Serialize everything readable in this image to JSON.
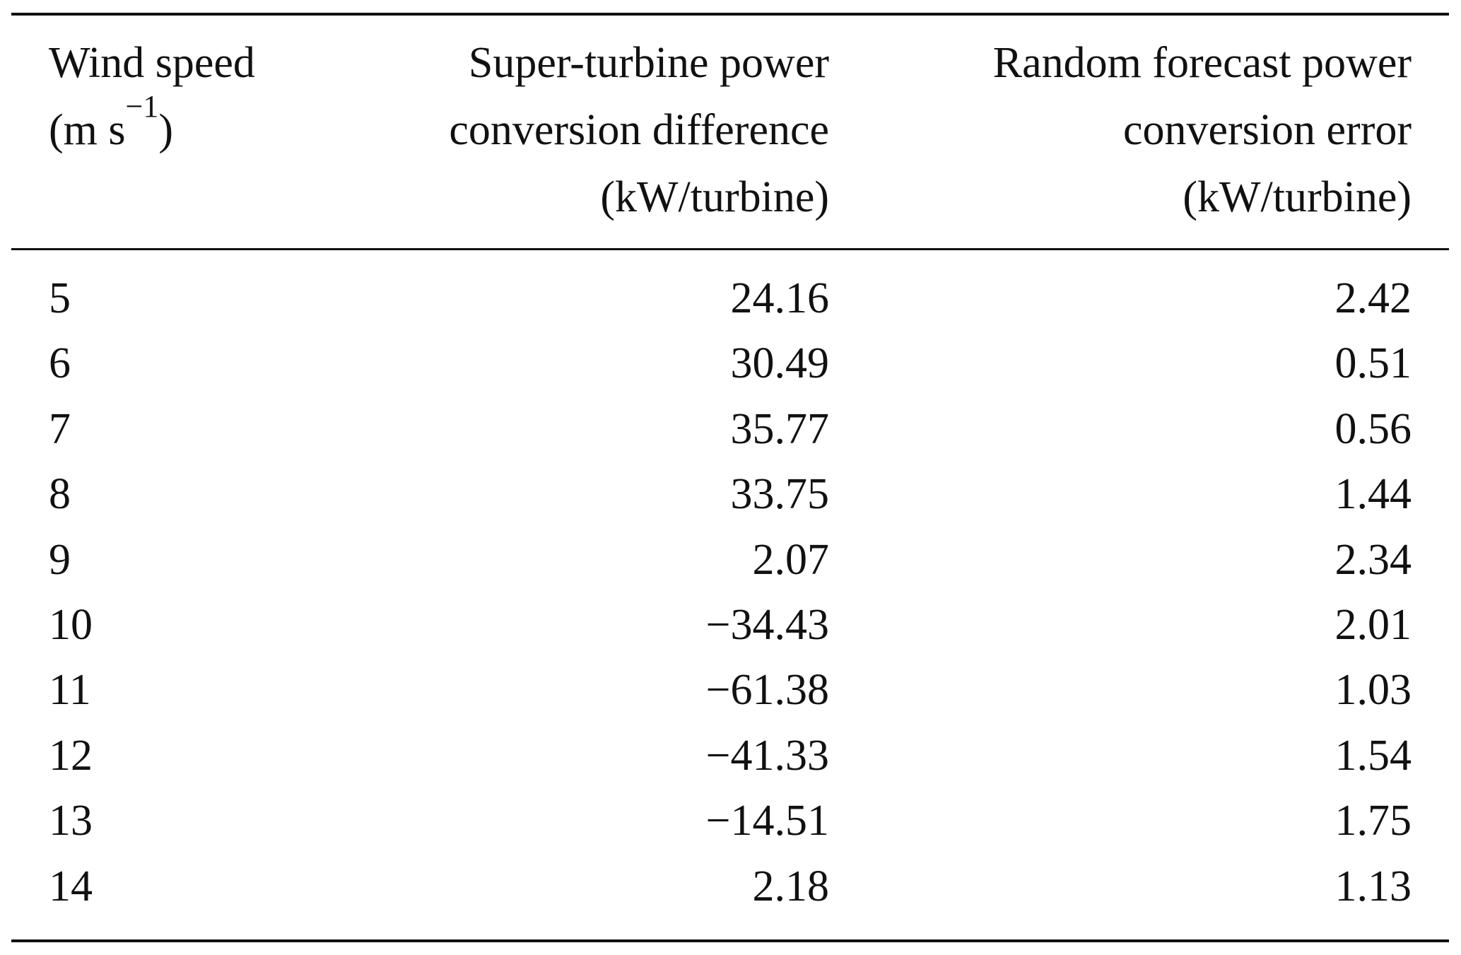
{
  "table": {
    "headers": [
      {
        "lines": [
          "Wind speed",
          "(m s",
          "−1",
          ")"
        ]
      },
      {
        "lines": [
          "Super-turbine power",
          "conversion difference",
          "(kW/turbine)"
        ]
      },
      {
        "lines": [
          "Random forecast power",
          "conversion error",
          "(kW/turbine)"
        ]
      }
    ],
    "rows": [
      [
        "5",
        "24.16",
        "2.42"
      ],
      [
        "6",
        "30.49",
        "0.51"
      ],
      [
        "7",
        "35.77",
        "0.56"
      ],
      [
        "8",
        "33.75",
        "1.44"
      ],
      [
        "9",
        "2.07",
        "2.34"
      ],
      [
        "10",
        "−34.43",
        "2.01"
      ],
      [
        "11",
        "−61.38",
        "1.03"
      ],
      [
        "12",
        "−41.33",
        "1.54"
      ],
      [
        "13",
        "−14.51",
        "1.75"
      ],
      [
        "14",
        "2.18",
        "1.13"
      ]
    ]
  }
}
